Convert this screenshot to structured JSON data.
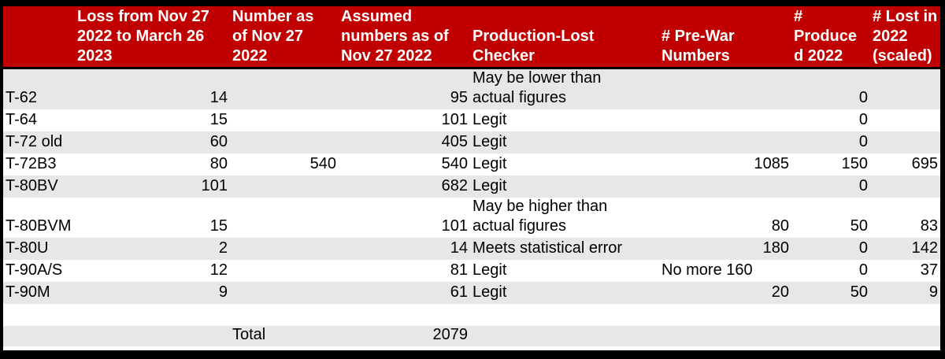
{
  "colors": {
    "header_red": "#c00000",
    "header_text": "#ffffff",
    "row_alt_gray": "#e8e7e7",
    "row_white": "#ffffff",
    "border_black": "#000000"
  },
  "table": {
    "columns": [
      {
        "label": ""
      },
      {
        "label": "Loss from Nov 27\n2022 to March 26\n2023"
      },
      {
        "label": "Number as\nof Nov 27\n2022"
      },
      {
        "label": "Assumed\nnumbers as of\nNov 27 2022"
      },
      {
        "label": "Production-Lost\nChecker"
      },
      {
        "label": "# Pre-War\nNumbers"
      },
      {
        "label": "#\nProduce\nd 2022"
      },
      {
        "label": "# Lost in\n2022\n(scaled)"
      }
    ],
    "rows": [
      {
        "model": "T-62",
        "loss": "14",
        "nov27": "",
        "assumed": "95",
        "checker": "May be lower than\nactual figures",
        "prewar": "",
        "produced": "0",
        "lost2022": "",
        "tall": true
      },
      {
        "model": "T-64",
        "loss": "15",
        "nov27": "",
        "assumed": "101",
        "checker": "Legit",
        "prewar": "",
        "produced": "0",
        "lost2022": ""
      },
      {
        "model": "T-72 old",
        "loss": "60",
        "nov27": "",
        "assumed": "405",
        "checker": "Legit",
        "prewar": "",
        "produced": "0",
        "lost2022": ""
      },
      {
        "model": "T-72B3",
        "loss": "80",
        "nov27": "540",
        "assumed": "540",
        "checker": "Legit",
        "prewar": "1085",
        "produced": "150",
        "lost2022": "695"
      },
      {
        "model": "T-80BV",
        "loss": "101",
        "nov27": "",
        "assumed": "682",
        "checker": "Legit",
        "prewar": "",
        "produced": "0",
        "lost2022": ""
      },
      {
        "model": "T-80BVM",
        "loss": "15",
        "nov27": "",
        "assumed": "101",
        "checker": "May be higher than\nactual figures",
        "prewar": "80",
        "produced": "50",
        "lost2022": "83",
        "tall": true
      },
      {
        "model": "T-80U",
        "loss": "2",
        "nov27": "",
        "assumed": "14",
        "checker": "Meets statistical error",
        "prewar": "180",
        "produced": "0",
        "lost2022": "142"
      },
      {
        "model": "T-90A/S",
        "loss": "12",
        "nov27": "",
        "assumed": "81",
        "checker": "Legit",
        "prewar": "No more 160",
        "produced": "0",
        "lost2022": "37"
      },
      {
        "model": "T-90M",
        "loss": "9",
        "nov27": "",
        "assumed": "61",
        "checker": "Legit",
        "prewar": "20",
        "produced": "50",
        "lost2022": "9"
      },
      {
        "model": "",
        "loss": "",
        "nov27": "",
        "assumed": "",
        "checker": "",
        "prewar": "",
        "produced": "",
        "lost2022": ""
      }
    ],
    "total": {
      "label": "Total",
      "value": "2079"
    }
  }
}
